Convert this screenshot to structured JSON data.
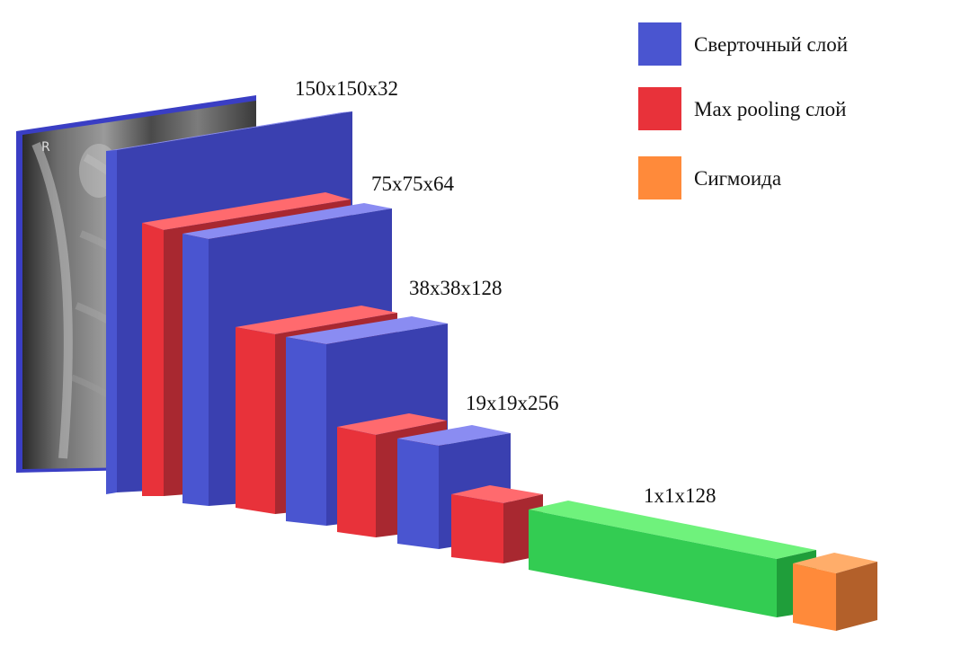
{
  "colors": {
    "conv": "#4a55d0",
    "pool": "#e8323a",
    "dense": "#33cc52",
    "sigmoid": "#ff8a3a"
  },
  "input_marker": "R",
  "legend": [
    {
      "label": "Сверточный слой",
      "color_key": "conv",
      "icon": "legend-swatch-conv"
    },
    {
      "label": "Max pooling слой",
      "color_key": "pool",
      "icon": "legend-swatch-pool"
    },
    {
      "label": "Сигмоида",
      "color_key": "sigmoid",
      "icon": "legend-swatch-sigmoid"
    }
  ],
  "dim_labels": [
    "150x150x32",
    "75x75x64",
    "38x38x128",
    "19x19x256",
    "1x1x128"
  ]
}
